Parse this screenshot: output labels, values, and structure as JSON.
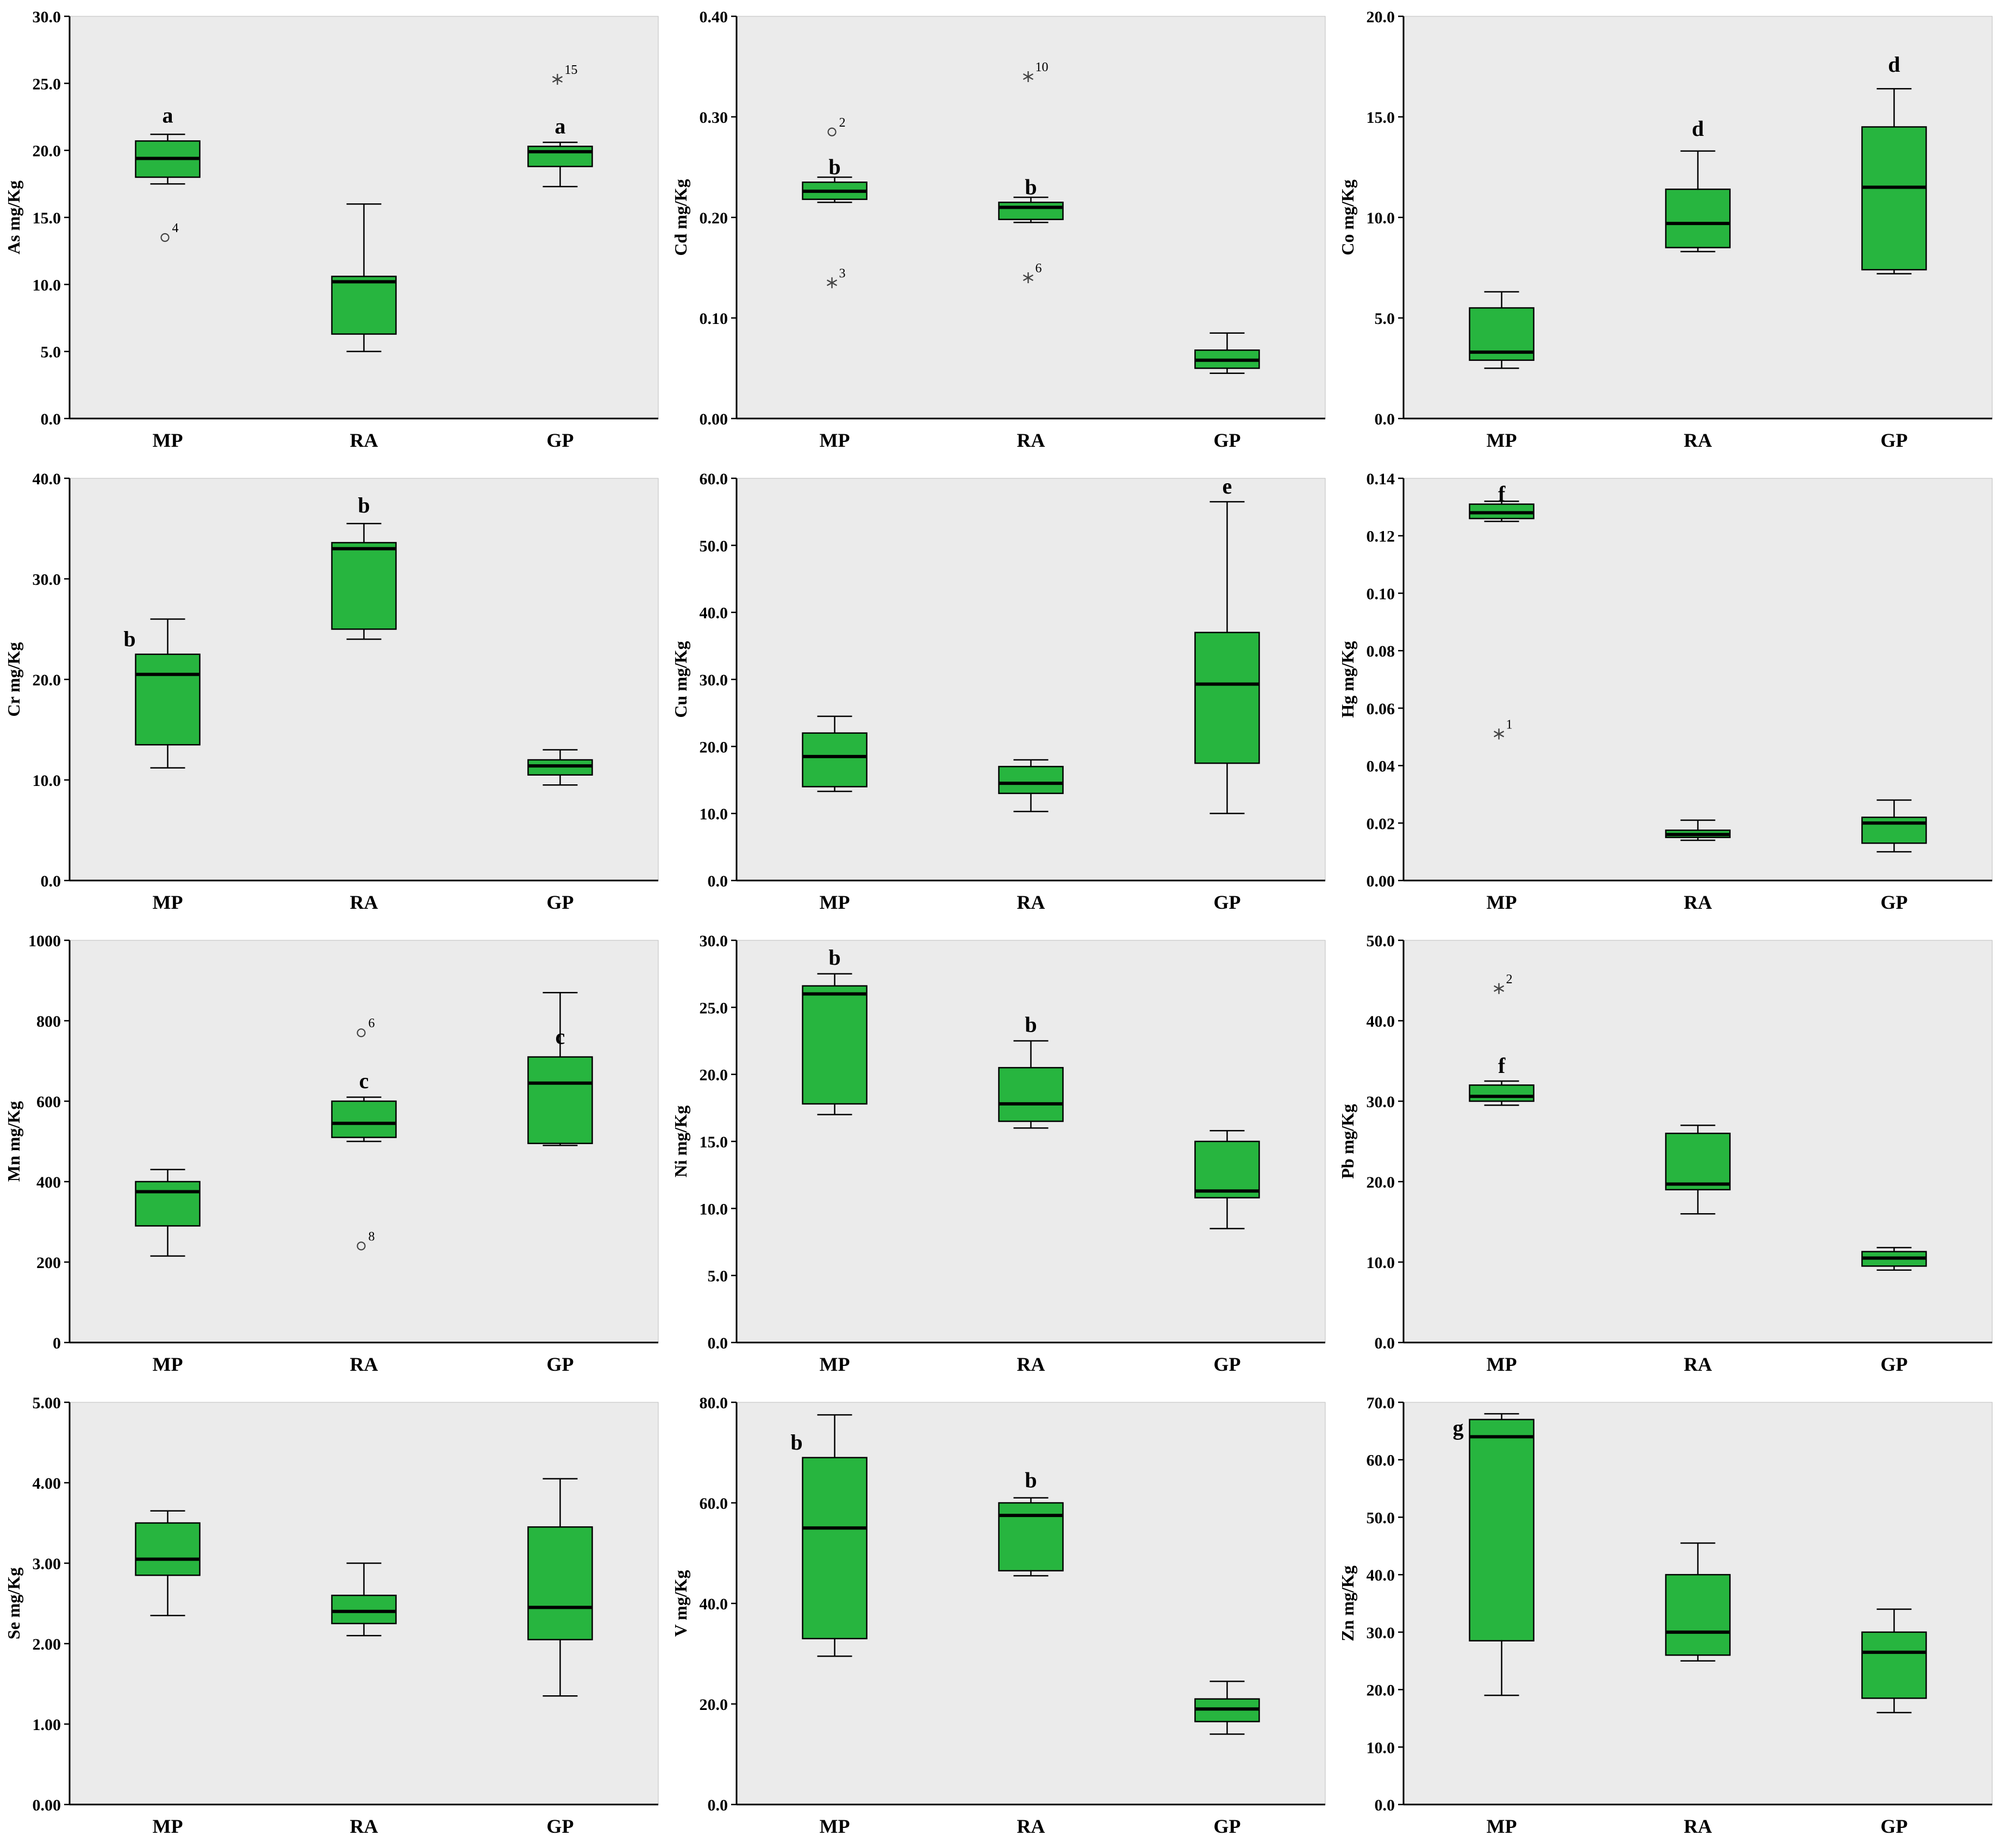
{
  "style": {
    "box_fill": "#27b53f",
    "box_stroke": "#000000",
    "panel_bg": "#ebebeb",
    "median_color": "#000000",
    "outlier_color": "#444444"
  },
  "categories": [
    "MP",
    "RA",
    "GP"
  ],
  "chart_data": [
    {
      "type": "boxplot",
      "id": "As",
      "ylabel": "As mg/Kg",
      "ylim": [
        0,
        30
      ],
      "ytick_values": [
        0,
        5,
        10,
        15,
        20,
        25,
        30
      ],
      "ytick_labels": [
        "0.0",
        "5.0",
        "10.0",
        "15.0",
        "20.0",
        "25.0",
        "30.0"
      ],
      "categories": [
        "MP",
        "RA",
        "GP"
      ],
      "groups": [
        {
          "name": "MP",
          "low": 17.5,
          "q1": 18.0,
          "median": 19.4,
          "q3": 20.7,
          "high": 21.2,
          "letter": "a",
          "letter_y": 22.6,
          "outliers": [
            {
              "value": 13.5,
              "symbol": "circle",
              "label": "4"
            }
          ]
        },
        {
          "name": "RA",
          "low": 5.0,
          "q1": 6.3,
          "median": 10.2,
          "q3": 10.6,
          "high": 16.0,
          "letter": null,
          "outliers": []
        },
        {
          "name": "GP",
          "low": 17.3,
          "q1": 18.8,
          "median": 19.9,
          "q3": 20.3,
          "high": 20.6,
          "letter": "a",
          "letter_y": 21.8,
          "outliers": [
            {
              "value": 25.3,
              "symbol": "star",
              "label": "15"
            }
          ]
        }
      ]
    },
    {
      "type": "boxplot",
      "id": "Cd",
      "ylabel": "Cd mg/Kg",
      "ylim": [
        0,
        0.4
      ],
      "ytick_values": [
        0,
        0.1,
        0.2,
        0.3,
        0.4
      ],
      "ytick_labels": [
        "0.00",
        "0.10",
        "0.20",
        "0.30",
        "0.40"
      ],
      "categories": [
        "MP",
        "RA",
        "GP"
      ],
      "groups": [
        {
          "name": "MP",
          "low": 0.215,
          "q1": 0.218,
          "median": 0.226,
          "q3": 0.235,
          "high": 0.24,
          "letter": "b",
          "letter_y": 0.25,
          "outliers": [
            {
              "value": 0.285,
              "symbol": "circle",
              "label": "2"
            },
            {
              "value": 0.135,
              "symbol": "star",
              "label": "3"
            }
          ]
        },
        {
          "name": "RA",
          "low": 0.195,
          "q1": 0.198,
          "median": 0.21,
          "q3": 0.215,
          "high": 0.22,
          "letter": "b",
          "letter_y": 0.23,
          "outliers": [
            {
              "value": 0.34,
              "symbol": "star",
              "label": "10"
            },
            {
              "value": 0.14,
              "symbol": "star",
              "label": "6"
            }
          ]
        },
        {
          "name": "GP",
          "low": 0.045,
          "q1": 0.05,
          "median": 0.058,
          "q3": 0.068,
          "high": 0.085,
          "letter": null,
          "outliers": []
        }
      ]
    },
    {
      "type": "boxplot",
      "id": "Co",
      "ylabel": "Co mg/Kg",
      "ylim": [
        0,
        20
      ],
      "ytick_values": [
        0,
        5,
        10,
        15,
        20
      ],
      "ytick_labels": [
        "0.0",
        "5.0",
        "10.0",
        "15.0",
        "20.0"
      ],
      "categories": [
        "MP",
        "RA",
        "GP"
      ],
      "groups": [
        {
          "name": "MP",
          "low": 2.5,
          "q1": 2.9,
          "median": 3.3,
          "q3": 5.5,
          "high": 6.3,
          "letter": null,
          "outliers": []
        },
        {
          "name": "RA",
          "low": 8.3,
          "q1": 8.5,
          "median": 9.7,
          "q3": 11.4,
          "high": 13.3,
          "letter": "d",
          "letter_y": 14.4,
          "outliers": []
        },
        {
          "name": "GP",
          "low": 7.2,
          "q1": 7.4,
          "median": 11.5,
          "q3": 14.5,
          "high": 16.4,
          "letter": "d",
          "letter_y": 17.6,
          "outliers": []
        }
      ]
    },
    {
      "type": "boxplot",
      "id": "Cr",
      "ylabel": "Cr mg/Kg",
      "ylim": [
        0,
        40
      ],
      "ytick_values": [
        0,
        10,
        20,
        30,
        40
      ],
      "ytick_labels": [
        "0.0",
        "10.0",
        "20.0",
        "30.0",
        "40.0"
      ],
      "categories": [
        "MP",
        "RA",
        "GP"
      ],
      "groups": [
        {
          "name": "MP",
          "low": 11.2,
          "q1": 13.5,
          "median": 20.5,
          "q3": 22.5,
          "high": 26.0,
          "letter": "b",
          "letter_y": 24.0,
          "letter_dx": -70,
          "outliers": []
        },
        {
          "name": "RA",
          "low": 24.0,
          "q1": 25.0,
          "median": 33.0,
          "q3": 33.6,
          "high": 35.5,
          "letter": "b",
          "letter_y": 37.3,
          "outliers": []
        },
        {
          "name": "GP",
          "low": 9.5,
          "q1": 10.5,
          "median": 11.4,
          "q3": 12.0,
          "high": 13.0,
          "letter": null,
          "outliers": []
        }
      ]
    },
    {
      "type": "boxplot",
      "id": "Cu",
      "ylabel": "Cu mg/Kg",
      "ylim": [
        0,
        60
      ],
      "ytick_values": [
        0,
        10,
        20,
        30,
        40,
        50,
        60
      ],
      "ytick_labels": [
        "0.0",
        "10.0",
        "20.0",
        "30.0",
        "40.0",
        "50.0",
        "60.0"
      ],
      "categories": [
        "MP",
        "RA",
        "GP"
      ],
      "groups": [
        {
          "name": "MP",
          "low": 13.3,
          "q1": 14.0,
          "median": 18.5,
          "q3": 22.0,
          "high": 24.5,
          "letter": null,
          "outliers": []
        },
        {
          "name": "RA",
          "low": 10.3,
          "q1": 13.0,
          "median": 14.5,
          "q3": 17.0,
          "high": 18.0,
          "letter": null,
          "outliers": []
        },
        {
          "name": "GP",
          "low": 10.0,
          "q1": 17.5,
          "median": 29.3,
          "q3": 37.0,
          "high": 56.5,
          "letter": "e",
          "letter_y": 58.8,
          "outliers": []
        }
      ]
    },
    {
      "type": "boxplot",
      "id": "Hg",
      "ylabel": "Hg mg/Kg",
      "ylim": [
        0,
        0.14
      ],
      "ytick_values": [
        0,
        0.02,
        0.04,
        0.06,
        0.08,
        0.1,
        0.12,
        0.14
      ],
      "ytick_labels": [
        "0.00",
        "0.02",
        "0.04",
        "0.06",
        "0.08",
        "0.10",
        "0.12",
        "0.14"
      ],
      "categories": [
        "MP",
        "RA",
        "GP"
      ],
      "groups": [
        {
          "name": "MP",
          "low": 0.125,
          "q1": 0.126,
          "median": 0.128,
          "q3": 0.131,
          "high": 0.132,
          "letter": "f",
          "letter_y": 0.1345,
          "outliers": [
            {
              "value": 0.051,
              "symbol": "star",
              "label": "1"
            }
          ]
        },
        {
          "name": "RA",
          "low": 0.014,
          "q1": 0.015,
          "median": 0.016,
          "q3": 0.0175,
          "high": 0.021,
          "letter": null,
          "outliers": []
        },
        {
          "name": "GP",
          "low": 0.01,
          "q1": 0.013,
          "median": 0.02,
          "q3": 0.022,
          "high": 0.028,
          "letter": null,
          "outliers": []
        }
      ]
    },
    {
      "type": "boxplot",
      "id": "Mn",
      "ylabel": "Mn mg/Kg",
      "ylim": [
        0,
        1000
      ],
      "ytick_values": [
        0,
        200,
        400,
        600,
        800,
        1000
      ],
      "ytick_labels": [
        "0",
        "200",
        "400",
        "600",
        "800",
        "1000"
      ],
      "categories": [
        "MP",
        "RA",
        "GP"
      ],
      "groups": [
        {
          "name": "MP",
          "low": 215,
          "q1": 290,
          "median": 375,
          "q3": 400,
          "high": 430,
          "letter": null,
          "outliers": []
        },
        {
          "name": "RA",
          "low": 500,
          "q1": 510,
          "median": 545,
          "q3": 600,
          "high": 610,
          "letter": "c",
          "letter_y": 650,
          "outliers": [
            {
              "value": 770,
              "symbol": "circle",
              "label": "6"
            },
            {
              "value": 240,
              "symbol": "circle",
              "label": "8"
            }
          ]
        },
        {
          "name": "GP",
          "low": 490,
          "q1": 495,
          "median": 645,
          "q3": 710,
          "high": 870,
          "letter": "c",
          "letter_y": 760,
          "outliers": []
        }
      ]
    },
    {
      "type": "boxplot",
      "id": "Ni",
      "ylabel": "Ni mg/Kg",
      "ylim": [
        0,
        30
      ],
      "ytick_values": [
        0,
        5,
        10,
        15,
        20,
        25,
        30
      ],
      "ytick_labels": [
        "0.0",
        "5.0",
        "10.0",
        "15.0",
        "20.0",
        "25.0",
        "30.0"
      ],
      "categories": [
        "MP",
        "RA",
        "GP"
      ],
      "groups": [
        {
          "name": "MP",
          "low": 17.0,
          "q1": 17.8,
          "median": 26.0,
          "q3": 26.6,
          "high": 27.5,
          "letter": "b",
          "letter_y": 28.7,
          "outliers": []
        },
        {
          "name": "RA",
          "low": 16.0,
          "q1": 16.5,
          "median": 17.8,
          "q3": 20.5,
          "high": 22.5,
          "letter": "b",
          "letter_y": 23.7,
          "outliers": []
        },
        {
          "name": "GP",
          "low": 8.5,
          "q1": 10.8,
          "median": 11.3,
          "q3": 15.0,
          "high": 15.8,
          "letter": null,
          "outliers": []
        }
      ]
    },
    {
      "type": "boxplot",
      "id": "Pb",
      "ylabel": "Pb mg/Kg",
      "ylim": [
        0,
        50
      ],
      "ytick_values": [
        0,
        10,
        20,
        30,
        40,
        50
      ],
      "ytick_labels": [
        "0.0",
        "10.0",
        "20.0",
        "30.0",
        "40.0",
        "50.0"
      ],
      "categories": [
        "MP",
        "RA",
        "GP"
      ],
      "groups": [
        {
          "name": "MP",
          "low": 29.5,
          "q1": 30.0,
          "median": 30.6,
          "q3": 32.0,
          "high": 32.5,
          "letter": "f",
          "letter_y": 34.4,
          "outliers": [
            {
              "value": 44.0,
              "symbol": "star",
              "label": "2"
            }
          ]
        },
        {
          "name": "RA",
          "low": 16.0,
          "q1": 19.0,
          "median": 19.7,
          "q3": 26.0,
          "high": 27.0,
          "letter": null,
          "outliers": []
        },
        {
          "name": "GP",
          "low": 9.0,
          "q1": 9.5,
          "median": 10.5,
          "q3": 11.3,
          "high": 11.8,
          "letter": null,
          "outliers": []
        }
      ]
    },
    {
      "type": "boxplot",
      "id": "Se",
      "ylabel": "Se mg/Kg",
      "ylim": [
        0,
        5
      ],
      "ytick_values": [
        0,
        1,
        2,
        3,
        4,
        5
      ],
      "ytick_labels": [
        "0.00",
        "1.00",
        "2.00",
        "3.00",
        "4.00",
        "5.00"
      ],
      "categories": [
        "MP",
        "RA",
        "GP"
      ],
      "groups": [
        {
          "name": "MP",
          "low": 2.35,
          "q1": 2.85,
          "median": 3.05,
          "q3": 3.5,
          "high": 3.65,
          "letter": null,
          "outliers": []
        },
        {
          "name": "RA",
          "low": 2.1,
          "q1": 2.25,
          "median": 2.4,
          "q3": 2.6,
          "high": 3.0,
          "letter": null,
          "outliers": []
        },
        {
          "name": "GP",
          "low": 1.35,
          "q1": 2.05,
          "median": 2.45,
          "q3": 3.45,
          "high": 4.05,
          "letter": null,
          "outliers": []
        }
      ]
    },
    {
      "type": "boxplot",
      "id": "V",
      "ylabel": "V mg/Kg",
      "ylim": [
        0,
        80
      ],
      "ytick_values": [
        0,
        20,
        40,
        60,
        80
      ],
      "ytick_labels": [
        "0.0",
        "20.0",
        "40.0",
        "60.0",
        "80.0"
      ],
      "categories": [
        "MP",
        "RA",
        "GP"
      ],
      "groups": [
        {
          "name": "MP",
          "low": 29.5,
          "q1": 33.0,
          "median": 55.0,
          "q3": 69.0,
          "high": 77.5,
          "letter": "b",
          "letter_y": 72.0,
          "letter_dx": -70,
          "outliers": []
        },
        {
          "name": "RA",
          "low": 45.5,
          "q1": 46.5,
          "median": 57.5,
          "q3": 60.0,
          "high": 61.0,
          "letter": "b",
          "letter_y": 64.5,
          "outliers": []
        },
        {
          "name": "GP",
          "low": 14.0,
          "q1": 16.5,
          "median": 19.0,
          "q3": 21.0,
          "high": 24.5,
          "letter": null,
          "outliers": []
        }
      ]
    },
    {
      "type": "boxplot",
      "id": "Zn",
      "ylabel": "Zn mg/Kg",
      "ylim": [
        0,
        70
      ],
      "ytick_values": [
        0,
        10,
        20,
        30,
        40,
        50,
        60,
        70
      ],
      "ytick_labels": [
        "0.0",
        "10.0",
        "20.0",
        "30.0",
        "40.0",
        "50.0",
        "60.0",
        "70.0"
      ],
      "categories": [
        "MP",
        "RA",
        "GP"
      ],
      "groups": [
        {
          "name": "MP",
          "low": 19.0,
          "q1": 28.5,
          "median": 64.0,
          "q3": 67.0,
          "high": 68.0,
          "letter": "g",
          "letter_y": 65.5,
          "letter_dx": -80,
          "outliers": []
        },
        {
          "name": "RA",
          "low": 25.0,
          "q1": 26.0,
          "median": 30.0,
          "q3": 40.0,
          "high": 45.5,
          "letter": null,
          "outliers": []
        },
        {
          "name": "GP",
          "low": 16.0,
          "q1": 18.5,
          "median": 26.5,
          "q3": 30.0,
          "high": 34.0,
          "letter": null,
          "outliers": []
        }
      ]
    }
  ]
}
